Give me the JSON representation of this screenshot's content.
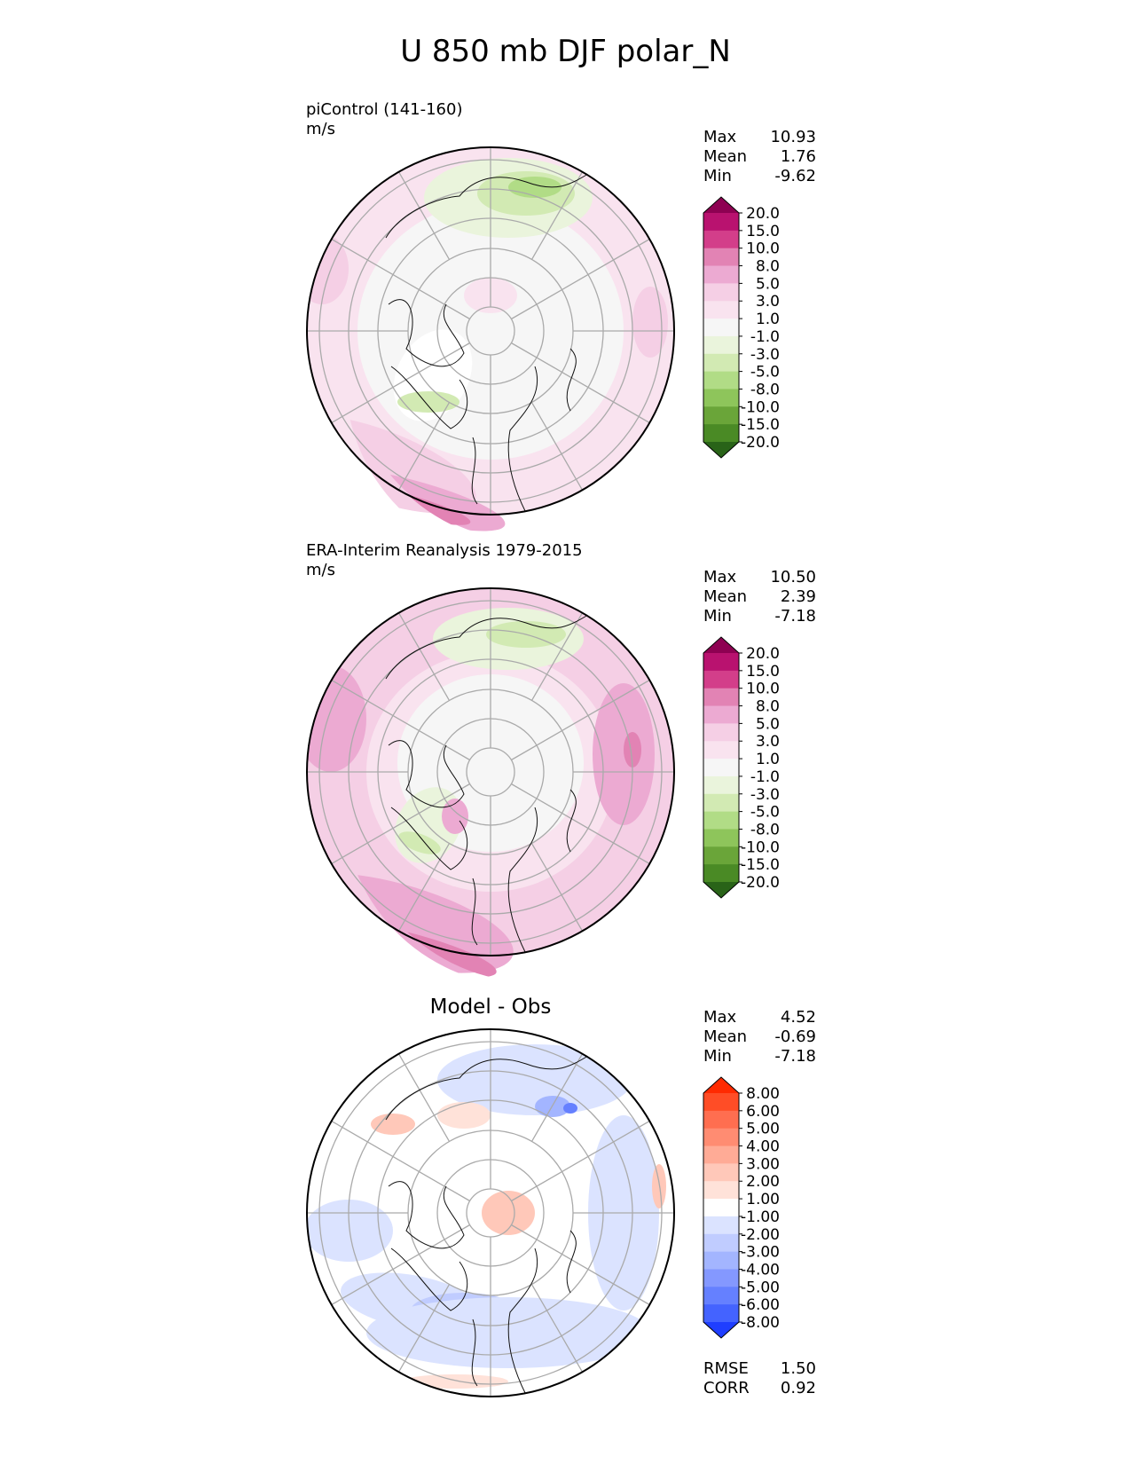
{
  "title": "U 850 mb DJF polar_N",
  "panels": [
    {
      "id": "test",
      "title": "piControl (141-160)",
      "units": "m/s",
      "center_title": "",
      "stats": [
        {
          "label": "Max",
          "value": "10.93"
        },
        {
          "label": "Mean",
          "value": "1.76"
        },
        {
          "label": "Min",
          "value": "-9.62"
        }
      ],
      "colorbar": {
        "levels": [
          "20.0",
          "15.0",
          "10.0",
          "8.0",
          "5.0",
          "3.0",
          "1.0",
          "-1.0",
          "-3.0",
          "-5.0",
          "-8.0",
          "-10.0",
          "-15.0",
          "-20.0"
        ],
        "colors": [
          "#8e0152",
          "#b9126f",
          "#d33e8a",
          "#e283b4",
          "#ecaad2",
          "#f5cfe5",
          "#f9e3ef",
          "#f6f6f6",
          "#eaf4dc",
          "#d2eab3",
          "#b1dc86",
          "#8ec55b",
          "#6aa539",
          "#4a8a25",
          "#296318"
        ]
      },
      "bottom_stats": []
    },
    {
      "id": "reference",
      "title": "ERA-Interim Reanalysis 1979-2015",
      "units": "m/s",
      "center_title": "",
      "stats": [
        {
          "label": "Max",
          "value": "10.50"
        },
        {
          "label": "Mean",
          "value": "2.39"
        },
        {
          "label": "Min",
          "value": "-7.18"
        }
      ],
      "colorbar": {
        "levels": [
          "20.0",
          "15.0",
          "10.0",
          "8.0",
          "5.0",
          "3.0",
          "1.0",
          "-1.0",
          "-3.0",
          "-5.0",
          "-8.0",
          "-10.0",
          "-15.0",
          "-20.0"
        ],
        "colors": [
          "#8e0152",
          "#b9126f",
          "#d33e8a",
          "#e283b4",
          "#ecaad2",
          "#f5cfe5",
          "#f9e3ef",
          "#f6f6f6",
          "#eaf4dc",
          "#d2eab3",
          "#b1dc86",
          "#8ec55b",
          "#6aa539",
          "#4a8a25",
          "#296318"
        ]
      },
      "bottom_stats": []
    },
    {
      "id": "diff",
      "title": "",
      "units": "",
      "center_title": "Model - Obs",
      "stats": [
        {
          "label": "Max",
          "value": "4.52"
        },
        {
          "label": "Mean",
          "value": "-0.69"
        },
        {
          "label": "Min",
          "value": "-7.18"
        }
      ],
      "colorbar": {
        "levels": [
          "8.00",
          "6.00",
          "5.00",
          "4.00",
          "3.00",
          "2.00",
          "1.00",
          "-1.00",
          "-2.00",
          "-3.00",
          "-4.00",
          "-5.00",
          "-6.00",
          "-8.00"
        ],
        "colors": [
          "#ff2a00",
          "#ff4d26",
          "#ff6e50",
          "#ff8c72",
          "#ffab96",
          "#ffc8b9",
          "#ffe2d9",
          "#ffffff",
          "#dbe3ff",
          "#c0ccff",
          "#a3b5ff",
          "#8498ff",
          "#6580ff",
          "#4463ff",
          "#1f3eff"
        ]
      },
      "bottom_stats": [
        {
          "label": "RMSE",
          "value": "1.50"
        },
        {
          "label": "CORR",
          "value": "0.92"
        }
      ]
    }
  ]
}
